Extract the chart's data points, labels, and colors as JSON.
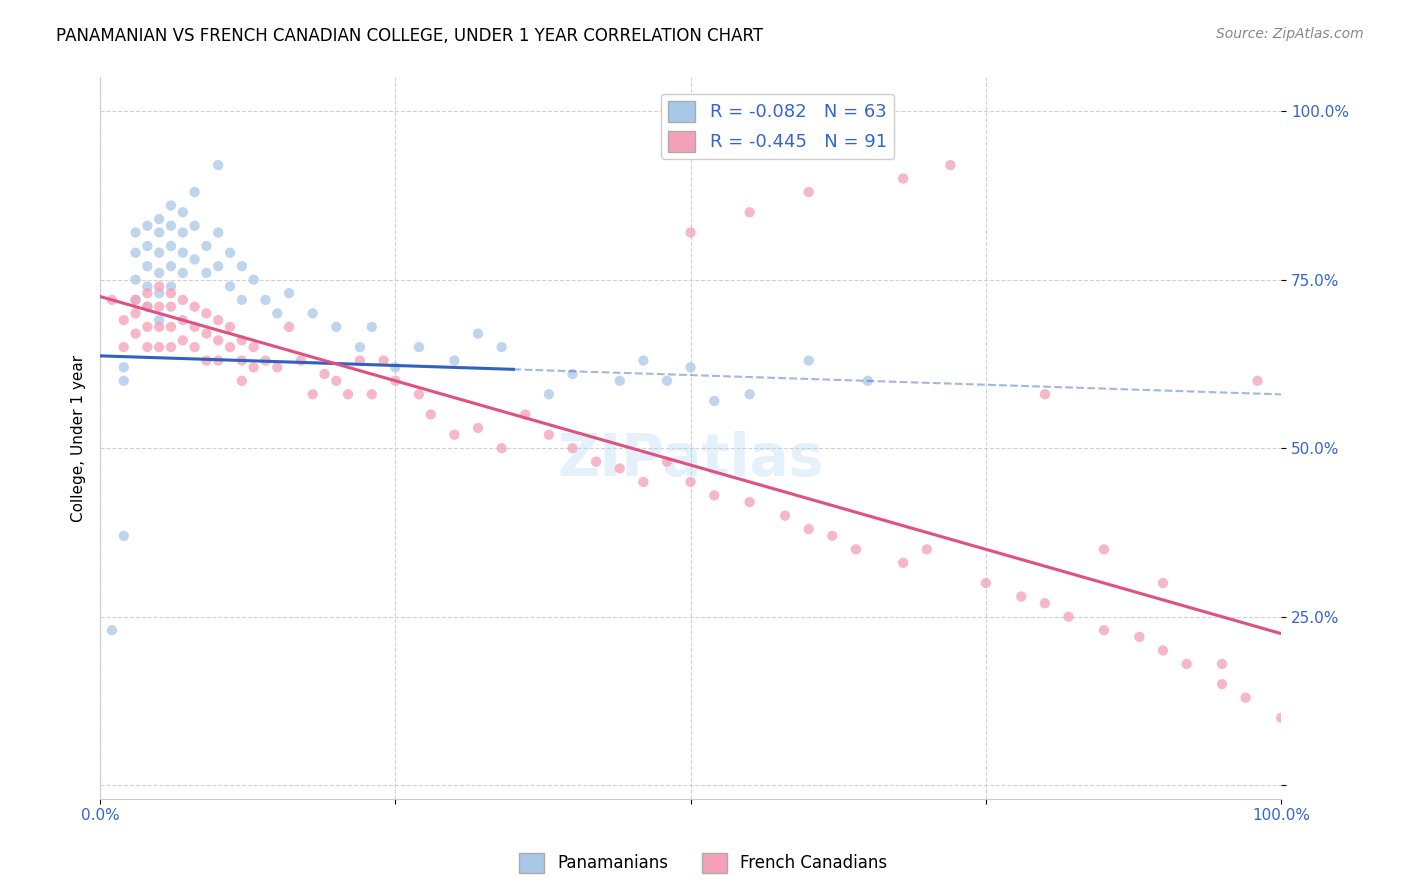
{
  "title": "PANAMANIAN VS FRENCH CANADIAN COLLEGE, UNDER 1 YEAR CORRELATION CHART",
  "source": "Source: ZipAtlas.com",
  "ylabel": "College, Under 1 year",
  "legend_r1": "R = -0.082",
  "legend_n1": "N = 63",
  "legend_r2": "R = -0.445",
  "legend_n2": "N = 91",
  "color_blue": "#A8C8E8",
  "color_pink": "#F4A0B8",
  "color_blue_line": "#3060C0",
  "color_pink_line": "#E05080",
  "watermark": "ZIPatlas",
  "blue_x": [
    0.01,
    0.02,
    0.02,
    0.02,
    0.03,
    0.03,
    0.03,
    0.03,
    0.04,
    0.04,
    0.04,
    0.04,
    0.04,
    0.05,
    0.05,
    0.05,
    0.05,
    0.05,
    0.05,
    0.06,
    0.06,
    0.06,
    0.06,
    0.06,
    0.07,
    0.07,
    0.07,
    0.07,
    0.08,
    0.08,
    0.08,
    0.09,
    0.09,
    0.1,
    0.1,
    0.1,
    0.11,
    0.11,
    0.12,
    0.12,
    0.13,
    0.14,
    0.15,
    0.16,
    0.18,
    0.2,
    0.22,
    0.23,
    0.25,
    0.27,
    0.3,
    0.32,
    0.34,
    0.38,
    0.4,
    0.44,
    0.46,
    0.48,
    0.5,
    0.52,
    0.55,
    0.6,
    0.65
  ],
  "blue_y": [
    0.23,
    0.62,
    0.6,
    0.37,
    0.82,
    0.79,
    0.75,
    0.72,
    0.83,
    0.8,
    0.77,
    0.74,
    0.71,
    0.84,
    0.82,
    0.79,
    0.76,
    0.73,
    0.69,
    0.86,
    0.83,
    0.8,
    0.77,
    0.74,
    0.85,
    0.82,
    0.79,
    0.76,
    0.88,
    0.83,
    0.78,
    0.8,
    0.76,
    0.92,
    0.82,
    0.77,
    0.79,
    0.74,
    0.77,
    0.72,
    0.75,
    0.72,
    0.7,
    0.73,
    0.7,
    0.68,
    0.65,
    0.68,
    0.62,
    0.65,
    0.63,
    0.67,
    0.65,
    0.58,
    0.61,
    0.6,
    0.63,
    0.6,
    0.62,
    0.57,
    0.58,
    0.63,
    0.6
  ],
  "pink_x": [
    0.01,
    0.02,
    0.02,
    0.03,
    0.03,
    0.03,
    0.04,
    0.04,
    0.04,
    0.04,
    0.05,
    0.05,
    0.05,
    0.05,
    0.06,
    0.06,
    0.06,
    0.06,
    0.07,
    0.07,
    0.07,
    0.08,
    0.08,
    0.08,
    0.09,
    0.09,
    0.09,
    0.1,
    0.1,
    0.1,
    0.11,
    0.11,
    0.12,
    0.12,
    0.12,
    0.13,
    0.13,
    0.14,
    0.15,
    0.16,
    0.17,
    0.18,
    0.19,
    0.2,
    0.21,
    0.22,
    0.23,
    0.24,
    0.25,
    0.27,
    0.28,
    0.3,
    0.32,
    0.34,
    0.36,
    0.38,
    0.4,
    0.42,
    0.44,
    0.46,
    0.48,
    0.5,
    0.52,
    0.55,
    0.58,
    0.6,
    0.62,
    0.64,
    0.68,
    0.7,
    0.75,
    0.78,
    0.8,
    0.82,
    0.85,
    0.88,
    0.9,
    0.92,
    0.95,
    0.97,
    1.0,
    0.5,
    0.55,
    0.6,
    0.68,
    0.72,
    0.8,
    0.85,
    0.9,
    0.95,
    0.98
  ],
  "pink_y": [
    0.72,
    0.69,
    0.65,
    0.72,
    0.7,
    0.67,
    0.73,
    0.71,
    0.68,
    0.65,
    0.74,
    0.71,
    0.68,
    0.65,
    0.73,
    0.71,
    0.68,
    0.65,
    0.72,
    0.69,
    0.66,
    0.71,
    0.68,
    0.65,
    0.7,
    0.67,
    0.63,
    0.69,
    0.66,
    0.63,
    0.68,
    0.65,
    0.66,
    0.63,
    0.6,
    0.65,
    0.62,
    0.63,
    0.62,
    0.68,
    0.63,
    0.58,
    0.61,
    0.6,
    0.58,
    0.63,
    0.58,
    0.63,
    0.6,
    0.58,
    0.55,
    0.52,
    0.53,
    0.5,
    0.55,
    0.52,
    0.5,
    0.48,
    0.47,
    0.45,
    0.48,
    0.45,
    0.43,
    0.42,
    0.4,
    0.38,
    0.37,
    0.35,
    0.33,
    0.35,
    0.3,
    0.28,
    0.27,
    0.25,
    0.23,
    0.22,
    0.2,
    0.18,
    0.15,
    0.13,
    0.1,
    0.82,
    0.85,
    0.88,
    0.9,
    0.92,
    0.58,
    0.35,
    0.3,
    0.18,
    0.6
  ],
  "blue_line_x0": 0.0,
  "blue_line_x1": 0.35,
  "blue_line_x_dash_end": 1.0,
  "blue_line_y0": 0.637,
  "blue_line_y1": 0.617,
  "pink_line_y0": 0.725,
  "pink_line_y1": 0.225,
  "xlim": [
    0.0,
    1.0
  ],
  "ylim": [
    -0.02,
    1.05
  ]
}
